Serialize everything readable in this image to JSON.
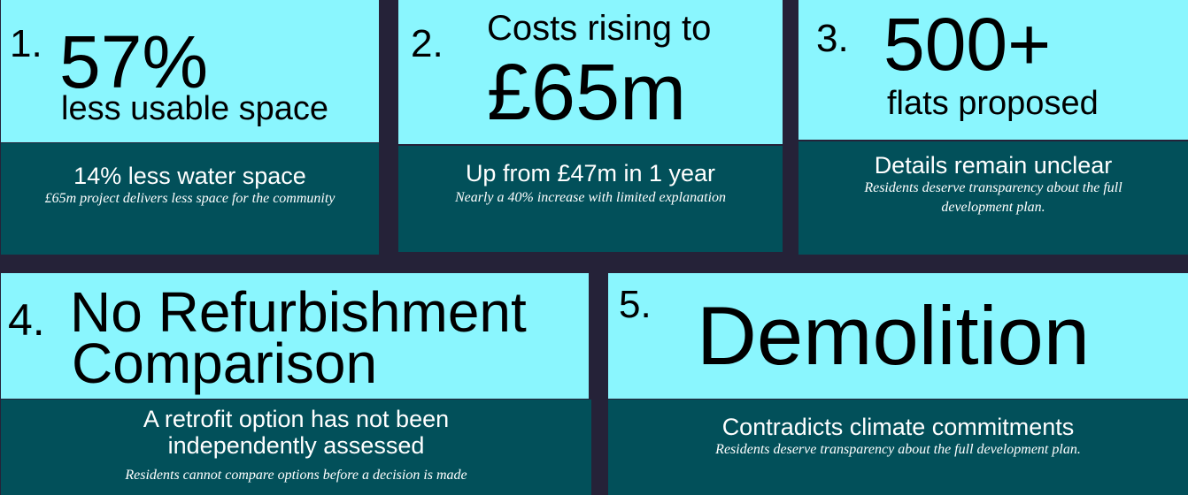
{
  "colors": {
    "background": "#252238",
    "highlight": "#8af6fe",
    "panel": "#02505a"
  },
  "cards": [
    {
      "number": "1.",
      "headline": "57%",
      "headline2": "less usable space",
      "detail": "14% less water space",
      "note": "£65m project delivers less space for the community"
    },
    {
      "number": "2.",
      "headline": "Costs rising to",
      "headline2": "£65m",
      "detail": "Up from £47m in 1 year",
      "note": "Nearly a 40% increase with limited explanation"
    },
    {
      "number": "3.",
      "headline": "500+",
      "headline2": "flats proposed",
      "detail": "Details remain unclear",
      "note": "Residents deserve transparency about the full development plan."
    },
    {
      "number": "4.",
      "headline": "No Refurbishment",
      "headline2": "Comparison",
      "detail": "A retrofit option has not been independently assessed",
      "note": "Residents cannot compare options before a decision is made"
    },
    {
      "number": "5.",
      "headline": "Demolition",
      "detail": "Contradicts climate commitments",
      "note": "Residents deserve transparency about the full development plan."
    }
  ]
}
